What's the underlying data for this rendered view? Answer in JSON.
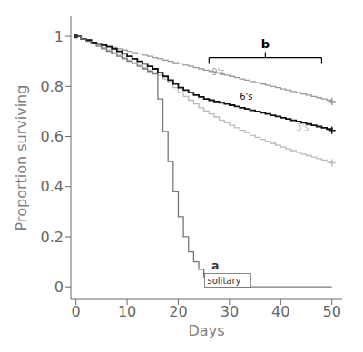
{
  "chart_data": {
    "type": "line",
    "xlabel": "Days",
    "ylabel": "Proportion surviving",
    "xlim": [
      -1,
      52
    ],
    "ylim": [
      -0.05,
      1.08
    ],
    "xticks": [
      0,
      10,
      20,
      30,
      40,
      50
    ],
    "yticks": [
      0.0,
      0.2,
      0.4,
      0.6,
      0.8,
      1.0
    ],
    "series": [
      {
        "type": "line",
        "line_style": "step",
        "color": "#bbbbbb",
        "x": [
          0,
          1,
          2,
          3,
          4,
          5,
          6,
          7,
          8,
          9,
          10,
          11,
          12,
          13,
          14,
          15,
          16,
          17,
          18,
          19,
          20,
          21,
          22,
          23,
          24,
          25,
          26,
          27,
          28,
          29,
          30,
          31,
          32,
          33,
          34,
          35,
          36,
          37,
          38,
          39,
          40,
          41,
          42,
          43,
          44,
          45,
          46,
          47,
          48,
          49,
          50
        ],
        "values": [
          1.0,
          0.99,
          0.985,
          0.975,
          0.965,
          0.955,
          0.945,
          0.935,
          0.925,
          0.915,
          0.905,
          0.895,
          0.885,
          0.875,
          0.865,
          0.855,
          0.845,
          0.83,
          0.815,
          0.795,
          0.775,
          0.76,
          0.745,
          0.73,
          0.715,
          0.702,
          0.69,
          0.678,
          0.666,
          0.655,
          0.645,
          0.635,
          0.625,
          0.615,
          0.605,
          0.597,
          0.589,
          0.581,
          0.573,
          0.565,
          0.558,
          0.551,
          0.544,
          0.537,
          0.53,
          0.524,
          0.518,
          0.512,
          0.506,
          0.5,
          0.495
        ]
      },
      {
        "type": "line",
        "line_style": "step",
        "color": "#999999",
        "x": [
          0,
          1,
          2,
          3,
          4,
          5,
          6,
          7,
          8,
          9,
          10,
          11,
          12,
          13,
          14,
          15,
          16,
          17,
          18,
          19,
          20,
          21,
          22,
          23,
          24,
          25,
          26,
          27,
          28,
          29,
          30,
          31,
          32,
          33,
          34,
          35,
          36,
          37,
          38,
          39,
          40,
          41,
          42,
          43,
          44,
          45,
          46,
          47,
          48,
          49,
          50
        ],
        "values": [
          1.0,
          0.99,
          0.985,
          0.975,
          0.97,
          0.965,
          0.96,
          0.955,
          0.95,
          0.945,
          0.94,
          0.935,
          0.93,
          0.925,
          0.92,
          0.915,
          0.91,
          0.905,
          0.9,
          0.895,
          0.89,
          0.885,
          0.88,
          0.875,
          0.87,
          0.865,
          0.86,
          0.855,
          0.85,
          0.845,
          0.84,
          0.835,
          0.83,
          0.825,
          0.82,
          0.815,
          0.81,
          0.805,
          0.8,
          0.795,
          0.79,
          0.785,
          0.78,
          0.775,
          0.77,
          0.765,
          0.76,
          0.755,
          0.75,
          0.745,
          0.74
        ]
      },
      {
        "type": "line",
        "line_style": "step",
        "color": "#111111",
        "x": [
          0,
          1,
          2,
          3,
          4,
          5,
          6,
          7,
          8,
          9,
          10,
          11,
          12,
          13,
          14,
          15,
          16,
          17,
          18,
          19,
          20,
          21,
          22,
          23,
          24,
          25,
          26,
          27,
          28,
          29,
          30,
          31,
          32,
          33,
          34,
          35,
          36,
          37,
          38,
          39,
          40,
          41,
          42,
          43,
          44,
          45,
          46,
          47,
          48,
          49,
          50
        ],
        "values": [
          1.0,
          0.99,
          0.985,
          0.975,
          0.97,
          0.965,
          0.958,
          0.95,
          0.94,
          0.93,
          0.92,
          0.91,
          0.9,
          0.89,
          0.88,
          0.87,
          0.855,
          0.84,
          0.825,
          0.81,
          0.795,
          0.785,
          0.775,
          0.765,
          0.758,
          0.75,
          0.745,
          0.74,
          0.735,
          0.73,
          0.725,
          0.72,
          0.715,
          0.71,
          0.705,
          0.7,
          0.695,
          0.69,
          0.685,
          0.68,
          0.675,
          0.67,
          0.665,
          0.66,
          0.655,
          0.65,
          0.645,
          0.64,
          0.635,
          0.63,
          0.625
        ]
      },
      {
        "type": "line",
        "line_style": "step",
        "color": "#777777",
        "x": [
          0,
          1,
          2,
          3,
          4,
          5,
          6,
          7,
          8,
          9,
          10,
          11,
          12,
          13,
          14,
          15,
          16,
          17,
          18,
          19,
          20,
          21,
          22,
          23,
          24,
          25,
          26,
          27,
          28,
          29,
          30,
          31,
          50
        ],
        "values": [
          1.0,
          0.99,
          0.98,
          0.97,
          0.96,
          0.95,
          0.94,
          0.93,
          0.92,
          0.91,
          0.9,
          0.89,
          0.88,
          0.87,
          0.86,
          0.85,
          0.75,
          0.62,
          0.5,
          0.38,
          0.28,
          0.2,
          0.14,
          0.1,
          0.07,
          0.04,
          0.02,
          0.01,
          0.0,
          0.0,
          0.0,
          0.0,
          0.0
        ]
      },
      {
        "type": "scatter",
        "marker": "plus",
        "colors": [
          "#999999",
          "#111111",
          "#bbbbbb"
        ],
        "x": [
          50,
          50,
          50
        ],
        "values": [
          0.74,
          0.625,
          0.495
        ]
      },
      {
        "type": "scatter",
        "marker": "dot",
        "color": "#333333",
        "x": [
          0
        ],
        "values": [
          1.0
        ]
      }
    ],
    "annotations": [
      {
        "text": "9's",
        "x": 26.5,
        "y": 0.845,
        "color": "#999999"
      },
      {
        "text": "6's",
        "x": 32,
        "y": 0.745,
        "color": "#111111"
      },
      {
        "text": "3's",
        "x": 43,
        "y": 0.625,
        "color": "#bbbbbb"
      },
      {
        "text": "a",
        "x": 26.5,
        "y": 0.07,
        "color": "#333333"
      },
      {
        "text": "solitary",
        "x": 25.5,
        "y": 0.01,
        "color": "#333333",
        "box": true
      },
      {
        "text": "b",
        "x": 37,
        "y": 0.955,
        "color": "black",
        "bracket_x": [
          26,
          48
        ],
        "bracket_y": 0.915
      }
    ]
  }
}
